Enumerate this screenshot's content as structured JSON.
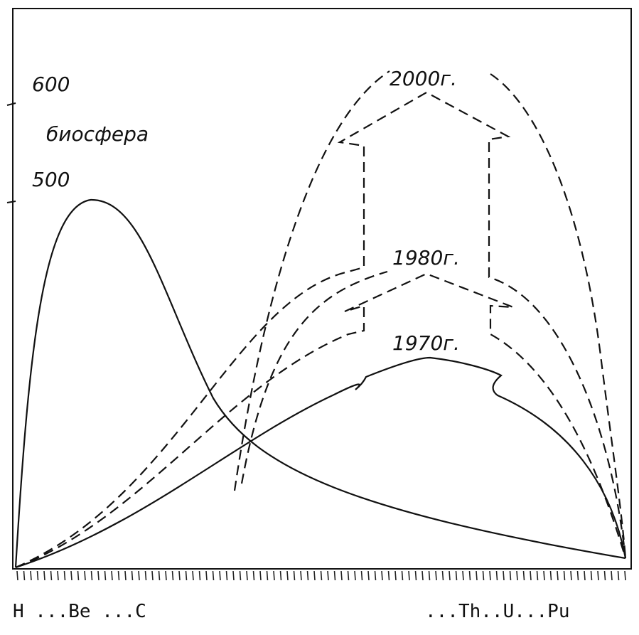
{
  "axis_labels": {
    "top": "600",
    "middle": "биосфера",
    "bottom": "500"
  },
  "curve_labels": {
    "y2000": "2000г.",
    "y1980": "1980г.",
    "y1970": "1970г."
  },
  "x_labels": {
    "left": "H ...Be ...C",
    "right": "...Th..U...Pu"
  }
}
